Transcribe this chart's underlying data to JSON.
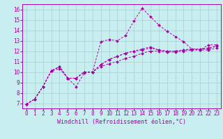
{
  "xlabel": "Windchill (Refroidissement éolien,°C)",
  "background_color": "#c8eef0",
  "grid_color": "#b0d8d8",
  "line_color": "#aa00aa",
  "x_ticks": [
    0,
    1,
    2,
    3,
    4,
    5,
    6,
    7,
    8,
    9,
    10,
    11,
    12,
    13,
    14,
    15,
    16,
    17,
    18,
    19,
    20,
    21,
    22,
    23
  ],
  "y_ticks": [
    7,
    8,
    9,
    10,
    11,
    12,
    13,
    14,
    15,
    16
  ],
  "xlim": [
    -0.5,
    23.5
  ],
  "ylim": [
    6.5,
    16.5
  ],
  "series": [
    [
      6.9,
      7.4,
      8.6,
      10.1,
      10.3,
      9.4,
      8.6,
      9.9,
      10.0,
      12.9,
      13.1,
      13.0,
      13.5,
      14.9,
      16.1,
      15.3,
      14.5,
      13.9,
      13.4,
      12.9,
      12.2,
      12.1,
      12.6,
      12.6
    ],
    [
      6.9,
      7.4,
      8.6,
      10.1,
      10.5,
      9.4,
      9.4,
      10.0,
      10.0,
      10.7,
      11.2,
      11.5,
      11.8,
      12.0,
      12.2,
      12.4,
      12.1,
      12.0,
      12.0,
      12.1,
      12.2,
      12.2,
      12.3,
      12.5
    ],
    [
      6.9,
      7.4,
      8.6,
      10.1,
      10.5,
      9.4,
      9.4,
      10.0,
      10.0,
      10.7,
      11.2,
      11.5,
      11.8,
      12.0,
      12.1,
      12.3,
      12.1,
      12.0,
      12.0,
      12.1,
      12.2,
      12.2,
      12.2,
      12.5
    ],
    [
      6.9,
      7.4,
      8.6,
      10.1,
      10.5,
      9.4,
      9.4,
      10.0,
      10.0,
      10.5,
      10.8,
      11.0,
      11.3,
      11.5,
      11.8,
      12.0,
      12.0,
      11.9,
      11.9,
      12.0,
      12.1,
      12.1,
      12.1,
      12.3
    ]
  ],
  "tick_fontsize": 5.5,
  "xlabel_fontsize": 6.0
}
